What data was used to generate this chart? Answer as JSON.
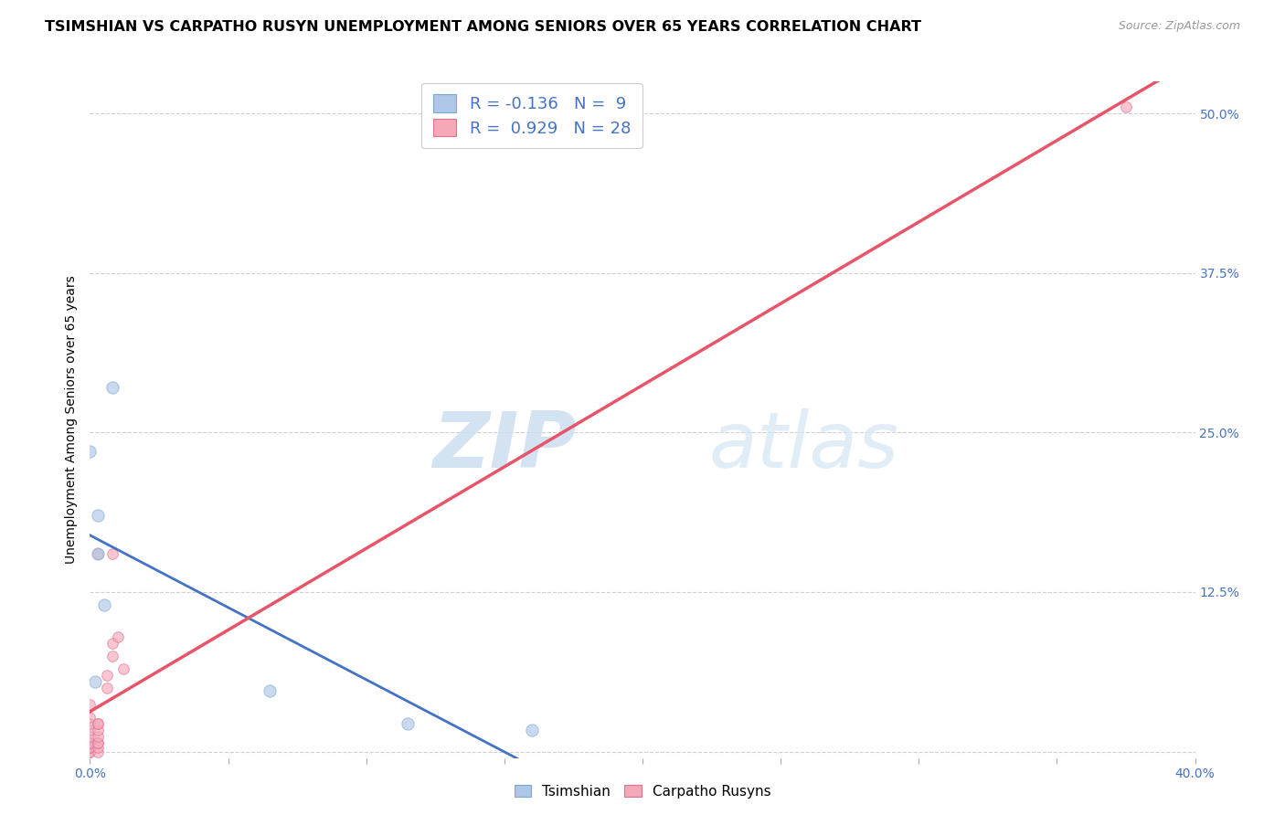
{
  "title": "TSIMSHIAN VS CARPATHO RUSYN UNEMPLOYMENT AMONG SENIORS OVER 65 YEARS CORRELATION CHART",
  "source": "Source: ZipAtlas.com",
  "ylabel": "Unemployment Among Seniors over 65 years",
  "xlim": [
    0.0,
    0.4
  ],
  "ylim": [
    -0.005,
    0.525
  ],
  "xticks": [
    0.0,
    0.05,
    0.1,
    0.15,
    0.2,
    0.25,
    0.3,
    0.35,
    0.4
  ],
  "yticks": [
    0.0,
    0.125,
    0.25,
    0.375,
    0.5
  ],
  "ytick_labels_right": [
    "",
    "12.5%",
    "25.0%",
    "37.5%",
    "50.0%"
  ],
  "grid_color": "#d0d0d0",
  "background_color": "#ffffff",
  "watermark_zip": "ZIP",
  "watermark_atlas": "atlas",
  "tsimshian_color": "#aec6e8",
  "tsimshian_edge_color": "#7aaad0",
  "carpatho_color": "#f4a8b8",
  "carpatho_edge_color": "#e07090",
  "tsimshian_x": [
    0.003,
    0.003,
    0.008,
    0.0,
    0.005,
    0.002,
    0.065,
    0.115,
    0.16
  ],
  "tsimshian_y": [
    0.155,
    0.185,
    0.285,
    0.235,
    0.115,
    0.055,
    0.048,
    0.022,
    0.017
  ],
  "carpatho_x": [
    0.0,
    0.0,
    0.0,
    0.0,
    0.0,
    0.0,
    0.0,
    0.0,
    0.0,
    0.0,
    0.0,
    0.003,
    0.003,
    0.003,
    0.003,
    0.003,
    0.003,
    0.003,
    0.003,
    0.003,
    0.006,
    0.006,
    0.008,
    0.008,
    0.008,
    0.01,
    0.012,
    0.375
  ],
  "carpatho_y": [
    0.0,
    0.0,
    0.003,
    0.003,
    0.007,
    0.007,
    0.012,
    0.017,
    0.022,
    0.027,
    0.037,
    0.0,
    0.003,
    0.007,
    0.007,
    0.012,
    0.017,
    0.022,
    0.022,
    0.155,
    0.05,
    0.06,
    0.075,
    0.085,
    0.155,
    0.09,
    0.065,
    0.505
  ],
  "tsimshian_line_color": "#4472c4",
  "carpatho_line_color": "#e8556a",
  "dot_size": 70,
  "dot_alpha": 0.65,
  "title_fontsize": 11.5,
  "axis_label_fontsize": 10,
  "tick_fontsize": 10,
  "legend_fontsize": 13
}
